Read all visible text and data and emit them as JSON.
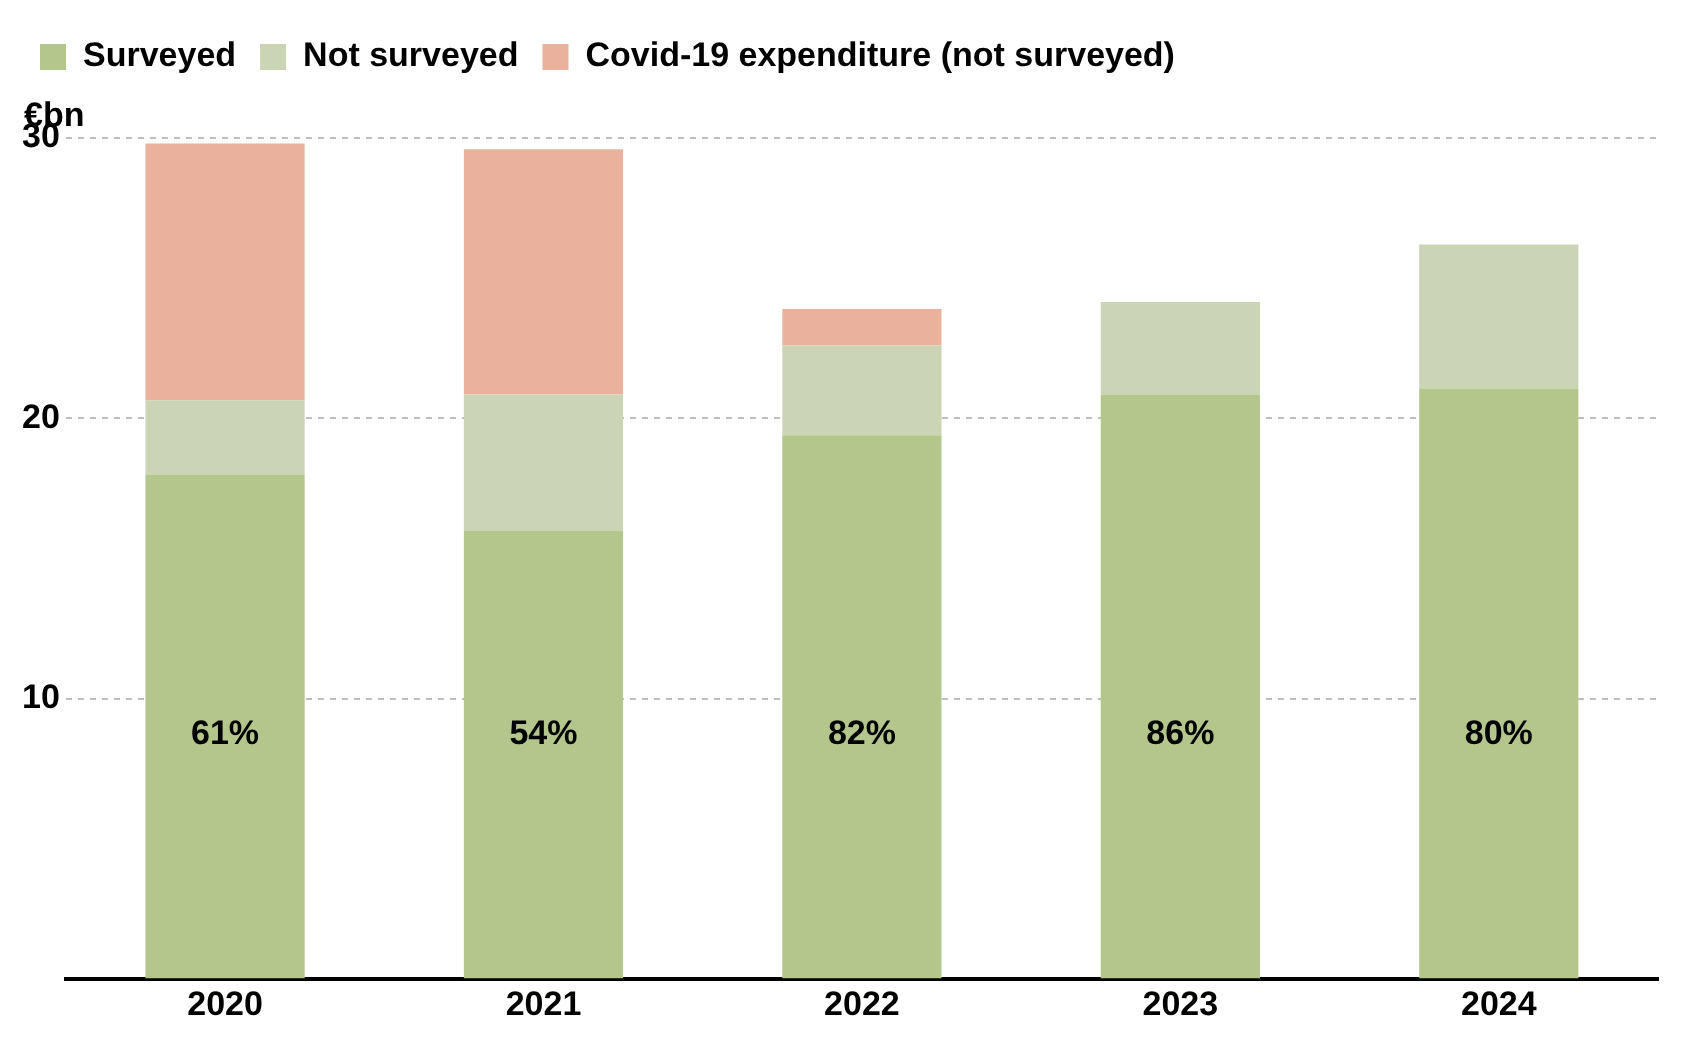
{
  "chart_data": {
    "type": "bar",
    "stacked": true,
    "ylabel": "€bn",
    "categories": [
      "2020",
      "2021",
      "2022",
      "2023",
      "2024"
    ],
    "series": [
      {
        "name": "Surveyed",
        "color": "#b5c68c",
        "values": [
          18.0,
          16.0,
          19.4,
          20.85,
          21.05
        ]
      },
      {
        "name": "Not surveyed",
        "color": "#ccd4b6",
        "values": [
          2.65,
          4.85,
          3.2,
          3.3,
          5.15
        ]
      },
      {
        "name": "Covid-19 expenditure (not surveyed)",
        "color": "#eab29c",
        "values": [
          9.15,
          8.75,
          1.3,
          null,
          null
        ]
      }
    ],
    "annotations": [
      "61%",
      "54%",
      "82%",
      "86%",
      "80%"
    ],
    "ylim": [
      0,
      30
    ],
    "yticks": [
      {
        "value": 0,
        "label": null
      },
      10,
      20,
      30
    ],
    "grid": "y",
    "legend": "top left"
  }
}
